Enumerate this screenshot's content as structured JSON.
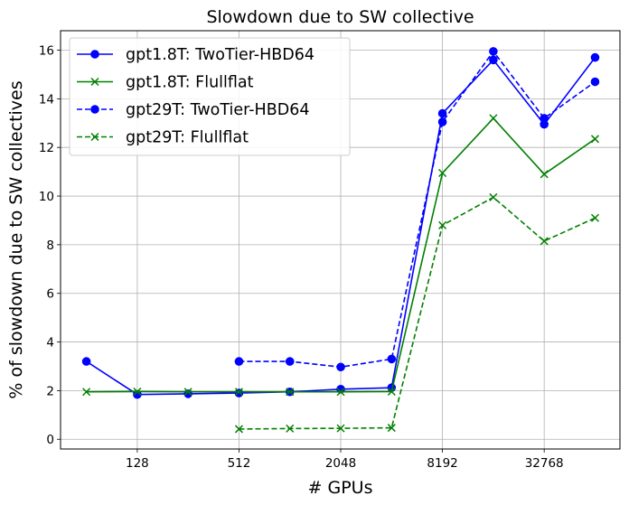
{
  "chart_data": {
    "type": "line",
    "title": "Slowdown due to SW collective",
    "xlabel": "# GPUs",
    "ylabel": "% of slowdown due to SW collectives",
    "x_scale": "log2",
    "x": [
      64,
      128,
      256,
      512,
      1024,
      2048,
      4096,
      8192,
      16384,
      32768,
      65536
    ],
    "xticks": [
      128,
      512,
      2048,
      8192,
      32768
    ],
    "xtick_labels": [
      "128",
      "512",
      "2048",
      "8192",
      "32768"
    ],
    "xlim": [
      45,
      92000
    ],
    "ylim": [
      -0.4,
      16.8
    ],
    "yticks": [
      0,
      2,
      4,
      6,
      8,
      10,
      12,
      14,
      16
    ],
    "ytick_labels": [
      "0",
      "2",
      "4",
      "6",
      "8",
      "10",
      "12",
      "14",
      "16"
    ],
    "grid": true,
    "legend_position": "top-left",
    "series": [
      {
        "name": "gpt1.8T: TwoTier-HBD64",
        "color": "#0000ff",
        "linestyle": "solid",
        "marker": "circle",
        "values": [
          3.2,
          1.84,
          1.87,
          1.9,
          1.95,
          2.06,
          2.12,
          13.4,
          15.6,
          12.95,
          15.7
        ]
      },
      {
        "name": "gpt1.8T: Flullflat",
        "color": "#008000",
        "linestyle": "solid",
        "marker": "x",
        "values": [
          1.95,
          1.96,
          1.95,
          1.95,
          1.95,
          1.95,
          1.96,
          10.95,
          13.2,
          10.9,
          12.35
        ]
      },
      {
        "name": "gpt29T: TwoTier-HBD64",
        "color": "#0000ff",
        "linestyle": "dashed",
        "marker": "circle",
        "values": [
          null,
          null,
          null,
          3.2,
          3.2,
          2.97,
          3.3,
          13.05,
          15.95,
          13.2,
          14.7
        ]
      },
      {
        "name": "gpt29T: Flullflat",
        "color": "#008000",
        "linestyle": "dashed",
        "marker": "x",
        "values": [
          null,
          null,
          null,
          0.42,
          0.44,
          0.45,
          0.47,
          8.8,
          9.95,
          8.15,
          9.1
        ]
      }
    ]
  }
}
